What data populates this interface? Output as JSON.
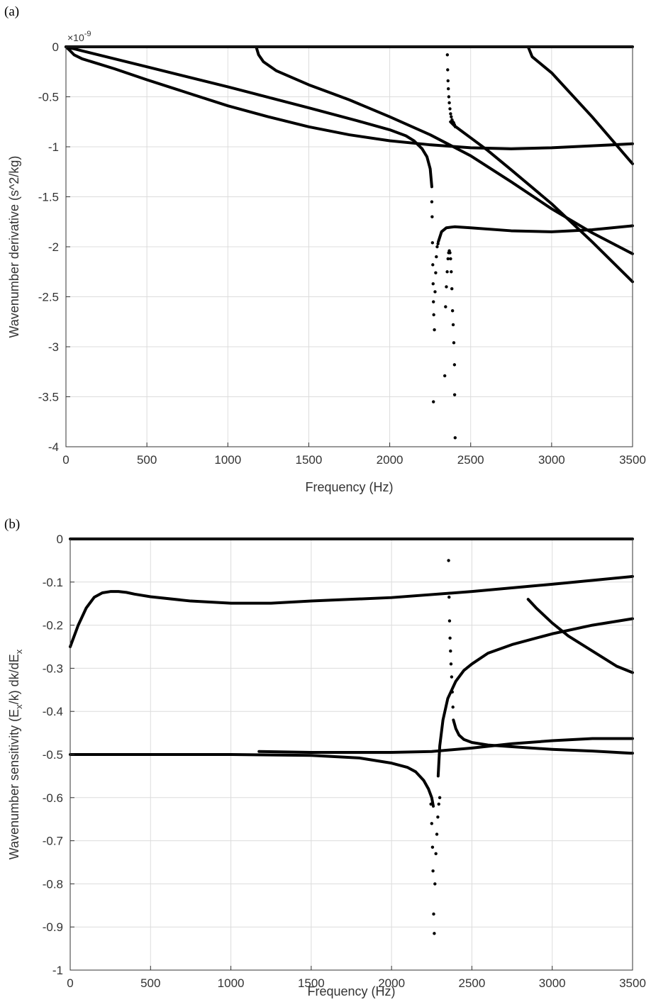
{
  "chart_data": [
    {
      "panel": "(a)",
      "type": "scatter",
      "xlabel": "Frequency (Hz)",
      "ylabel": "Wavenumber derivative (s^2/kg)",
      "exponent_label": "×10",
      "exponent_power": "-9",
      "xlim": [
        0,
        3500
      ],
      "ylim": [
        -4,
        0
      ],
      "xticks": [
        0,
        500,
        1000,
        1500,
        2000,
        2500,
        3000,
        3500
      ],
      "yticks": [
        0,
        -0.5,
        -1,
        -1.5,
        -2,
        -2.5,
        -3,
        -3.5,
        -4
      ],
      "xtick_labels": [
        "0",
        "500",
        "1000",
        "1500",
        "2000",
        "2500",
        "3000",
        "3500"
      ],
      "ytick_labels": [
        "0",
        "-0.5",
        "-1",
        "-1.5",
        "-2",
        "-2.5",
        "-3",
        "-3.5",
        "-4"
      ],
      "grid": true,
      "series": [
        {
          "style": "line",
          "x": [
            0,
            3500
          ],
          "y": [
            0,
            0
          ]
        },
        {
          "style": "line",
          "x": [
            0,
            20,
            50,
            100,
            200,
            300,
            500,
            750,
            1000,
            1250,
            1500,
            1750,
            2000,
            2250,
            2500,
            2750,
            3000,
            3250,
            3500
          ],
          "y": [
            0,
            -0.03,
            -0.08,
            -0.12,
            -0.17,
            -0.22,
            -0.33,
            -0.46,
            -0.59,
            -0.7,
            -0.8,
            -0.88,
            -0.94,
            -0.98,
            -1.01,
            -1.02,
            -1.01,
            -0.99,
            -0.97
          ]
        },
        {
          "style": "line",
          "x": [
            0,
            20,
            50,
            100,
            200,
            500,
            1000,
            1500,
            1800,
            2000,
            2100,
            2150,
            2200,
            2230,
            2250,
            2260
          ],
          "y": [
            0,
            -0.01,
            -0.02,
            -0.04,
            -0.08,
            -0.2,
            -0.4,
            -0.61,
            -0.74,
            -0.83,
            -0.89,
            -0.94,
            -1.02,
            -1.1,
            -1.22,
            -1.4
          ]
        },
        {
          "style": "line",
          "x": [
            1175,
            1190,
            1220,
            1300,
            1500,
            1750,
            2000,
            2250,
            2500,
            2750,
            3000,
            3250,
            3500
          ],
          "y": [
            0,
            -0.08,
            -0.15,
            -0.24,
            -0.38,
            -0.53,
            -0.7,
            -0.88,
            -1.09,
            -1.35,
            -1.62,
            -1.86,
            -2.07
          ]
        },
        {
          "style": "line",
          "x": [
            2375,
            2400,
            2450,
            2500,
            2600,
            2750,
            3000,
            3250,
            3500
          ],
          "y": [
            -0.75,
            -0.79,
            -0.85,
            -0.91,
            -1.03,
            -1.23,
            -1.57,
            -1.95,
            -2.35
          ]
        },
        {
          "style": "line",
          "x": [
            2300,
            2320,
            2350,
            2400,
            2500,
            2750,
            3000,
            3250,
            3500
          ],
          "y": [
            -1.95,
            -1.85,
            -1.81,
            -1.8,
            -1.81,
            -1.84,
            -1.85,
            -1.83,
            -1.79
          ]
        },
        {
          "style": "line",
          "x": [
            2855,
            2880,
            3000,
            3250,
            3500
          ],
          "y": [
            0,
            -0.1,
            -0.26,
            -0.7,
            -1.17
          ]
        },
        {
          "style": "dots",
          "x": [
            2260,
            2262,
            2264,
            2266,
            2268,
            2270,
            2272,
            2276,
            2280,
            2284,
            2288,
            2293,
            2298
          ],
          "y": [
            -1.55,
            -1.7,
            -1.96,
            -2.18,
            -2.37,
            -2.55,
            -2.68,
            -2.83,
            -2.45,
            -2.26,
            -2.1,
            -2.0,
            -1.97
          ]
        },
        {
          "style": "dots",
          "x": [
            2270
          ],
          "y": [
            -3.55
          ]
        },
        {
          "style": "dots",
          "x": [
            2356,
            2358,
            2360,
            2362,
            2365,
            2368,
            2372,
            2376,
            2380,
            2385,
            2390,
            2395,
            2400,
            2405
          ],
          "y": [
            -0.08,
            -0.23,
            -0.34,
            -0.42,
            -0.5,
            -0.56,
            -0.62,
            -0.67,
            -0.7,
            -0.73,
            -0.75,
            -0.76,
            -0.78,
            -0.8
          ]
        },
        {
          "style": "dots",
          "x": [
            2340,
            2345,
            2350,
            2355,
            2360,
            2364,
            2368,
            2372,
            2376,
            2380,
            2384,
            2388,
            2392,
            2396,
            2400
          ],
          "y": [
            -3.29,
            -2.6,
            -2.4,
            -2.25,
            -2.12,
            -2.06,
            -2.04,
            -2.06,
            -2.12,
            -2.25,
            -2.42,
            -2.64,
            -2.78,
            -2.96,
            -3.18
          ]
        },
        {
          "style": "dots",
          "x": [
            2401,
            2404
          ],
          "y": [
            -3.48,
            -3.91
          ]
        }
      ]
    },
    {
      "panel": "(b)",
      "type": "scatter",
      "xlabel": "Frequency (Hz)",
      "ylabel": "Wavenumber sensitivity (E",
      "ylabel_parts": [
        "Wavenumber sensitivity (E",
        "x",
        "/k) dk/dE",
        "x"
      ],
      "xlim": [
        0,
        3500
      ],
      "ylim": [
        -1,
        0
      ],
      "xticks": [
        0,
        500,
        1000,
        1500,
        2000,
        2500,
        3000,
        3500
      ],
      "yticks": [
        0,
        -0.1,
        -0.2,
        -0.3,
        -0.4,
        -0.5,
        -0.6,
        -0.7,
        -0.8,
        -0.9,
        -1
      ],
      "xtick_labels": [
        "0",
        "500",
        "1000",
        "1500",
        "2000",
        "2500",
        "3000",
        "3500"
      ],
      "ytick_labels": [
        "0",
        "-0.1",
        "-0.2",
        "-0.3",
        "-0.4",
        "-0.5",
        "-0.6",
        "-0.7",
        "-0.8",
        "-0.9",
        "-1"
      ],
      "grid": true,
      "series": [
        {
          "style": "line",
          "x": [
            0,
            3500
          ],
          "y": [
            0,
            0
          ]
        },
        {
          "style": "line",
          "x": [
            0,
            50,
            100,
            150,
            200,
            250,
            300,
            350,
            400,
            500,
            750,
            1000,
            1250,
            1500,
            2000,
            2500,
            3000,
            3500
          ],
          "y": [
            -0.25,
            -0.2,
            -0.16,
            -0.135,
            -0.125,
            -0.122,
            -0.122,
            -0.124,
            -0.128,
            -0.134,
            -0.144,
            -0.149,
            -0.149,
            -0.144,
            -0.136,
            -0.122,
            -0.105,
            -0.087
          ]
        },
        {
          "style": "line",
          "x": [
            0,
            500,
            1000,
            1500,
            1800,
            2000,
            2100,
            2150,
            2200,
            2230,
            2250,
            2260
          ],
          "y": [
            -0.5,
            -0.5,
            -0.5,
            -0.502,
            -0.508,
            -0.52,
            -0.53,
            -0.54,
            -0.56,
            -0.58,
            -0.6,
            -0.62
          ]
        },
        {
          "style": "line",
          "x": [
            1175,
            1500,
            2000,
            2250,
            2500,
            2750,
            3000,
            3250,
            3500
          ],
          "y": [
            -0.493,
            -0.495,
            -0.495,
            -0.493,
            -0.485,
            -0.475,
            -0.468,
            -0.463,
            -0.463
          ]
        },
        {
          "style": "line",
          "x": [
            2290,
            2300,
            2320,
            2350,
            2400,
            2450,
            2500,
            2600,
            2750,
            3000,
            3250,
            3500
          ],
          "y": [
            -0.55,
            -0.48,
            -0.42,
            -0.37,
            -0.33,
            -0.305,
            -0.29,
            -0.265,
            -0.245,
            -0.22,
            -0.2,
            -0.185
          ]
        },
        {
          "style": "line",
          "x": [
            2385,
            2400,
            2420,
            2450,
            2500,
            2600,
            2750,
            3000,
            3250,
            3500
          ],
          "y": [
            -0.42,
            -0.44,
            -0.455,
            -0.465,
            -0.472,
            -0.478,
            -0.482,
            -0.488,
            -0.492,
            -0.497
          ]
        },
        {
          "style": "line",
          "x": [
            2850,
            2900,
            3000,
            3100,
            3250,
            3400,
            3500
          ],
          "y": [
            -0.14,
            -0.16,
            -0.195,
            -0.225,
            -0.26,
            -0.295,
            -0.31
          ]
        },
        {
          "style": "dots",
          "x": [
            2245,
            2250,
            2255,
            2258,
            2262,
            2266,
            2270,
            2276,
            2282,
            2288,
            2294,
            2300
          ],
          "y": [
            -0.615,
            -0.66,
            -0.715,
            -0.77,
            -0.87,
            -0.915,
            -0.8,
            -0.73,
            -0.685,
            -0.645,
            -0.615,
            -0.6
          ]
        },
        {
          "style": "dots",
          "x": [
            2355,
            2358,
            2361,
            2364,
            2367,
            2370,
            2374,
            2378,
            2382
          ],
          "y": [
            -0.05,
            -0.135,
            -0.19,
            -0.23,
            -0.26,
            -0.29,
            -0.32,
            -0.355,
            -0.39
          ]
        }
      ]
    }
  ]
}
